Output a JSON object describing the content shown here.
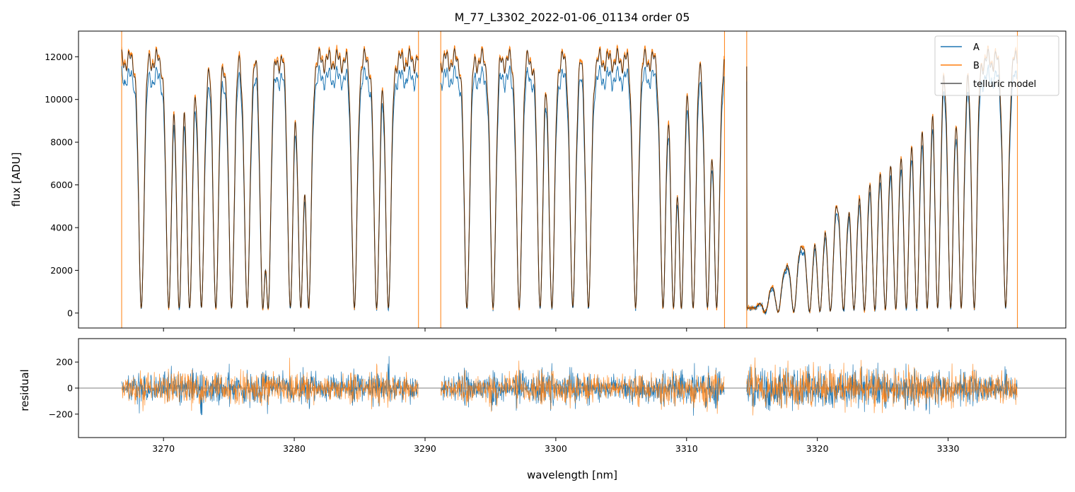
{
  "chart_data": [
    {
      "type": "line",
      "title": "M_77_L3302_2022-01-06_01134  order 05",
      "xlabel": "",
      "ylabel": "flux [ADU]",
      "xlim": [
        3263.5,
        3339
      ],
      "ylim": [
        -700,
        13200
      ],
      "yticks": [
        0,
        2000,
        4000,
        6000,
        8000,
        10000,
        12000
      ],
      "ytick_labels": [
        "0",
        "2000",
        "4000",
        "6000",
        "8000",
        "10000",
        "12000"
      ],
      "xticks": [
        3270,
        3280,
        3290,
        3300,
        3310,
        3320,
        3330
      ],
      "grid": false,
      "legend_position": "top-right",
      "segments": [
        [
          3266.8,
          3289.5
        ],
        [
          3291.2,
          3312.9
        ],
        [
          3314.6,
          3335.3
        ]
      ],
      "series": [
        {
          "name": "A",
          "color": "#1f77b4",
          "continuum": 11000
        },
        {
          "name": "B",
          "color": "#ff7f0e",
          "continuum": 11900
        },
        {
          "name": "telluric model",
          "color": "#000000",
          "continuum": 11800
        }
      ],
      "absorption_lines_nm": [
        3268.3,
        3270.4,
        3271.2,
        3272.0,
        3272.9,
        3274.0,
        3275.2,
        3276.4,
        3277.6,
        3278.0,
        3279.7,
        3280.5,
        3281.1,
        3284.6,
        3286.3,
        3287.2,
        3293.2,
        3295.2,
        3297.2,
        3298.8,
        3299.7,
        3301.3,
        3302.5,
        3306.1,
        3308.2,
        3309.0,
        3309.6,
        3310.5,
        3311.6,
        3312.3,
        3316.0,
        3317.0,
        3318.2,
        3319.4,
        3320.2,
        3321.0,
        3322.0,
        3322.8,
        3323.6,
        3324.4,
        3325.2,
        3326.0,
        3326.8,
        3327.6,
        3328.4,
        3329.2,
        3330.2,
        3331.0,
        3332.0,
        3334.4
      ]
    },
    {
      "type": "line",
      "title": "",
      "xlabel": "wavelength [nm]",
      "ylabel": "residual",
      "xlim": [
        3263.5,
        3339
      ],
      "ylim": [
        -380,
        380
      ],
      "yticks": [
        -200,
        0,
        200
      ],
      "ytick_labels": [
        "−200",
        "0",
        "200"
      ],
      "xticks": [
        3270,
        3280,
        3290,
        3300,
        3310,
        3320,
        3330
      ],
      "xtick_labels": [
        "3270",
        "3280",
        "3290",
        "3300",
        "3310",
        "3320",
        "3330"
      ],
      "grid": false,
      "zero_line": true,
      "series": [
        {
          "name": "A",
          "color": "#1f77b4",
          "noise_sigma": 85
        },
        {
          "name": "B",
          "color": "#ff7f0e",
          "noise_sigma": 85
        }
      ]
    }
  ]
}
